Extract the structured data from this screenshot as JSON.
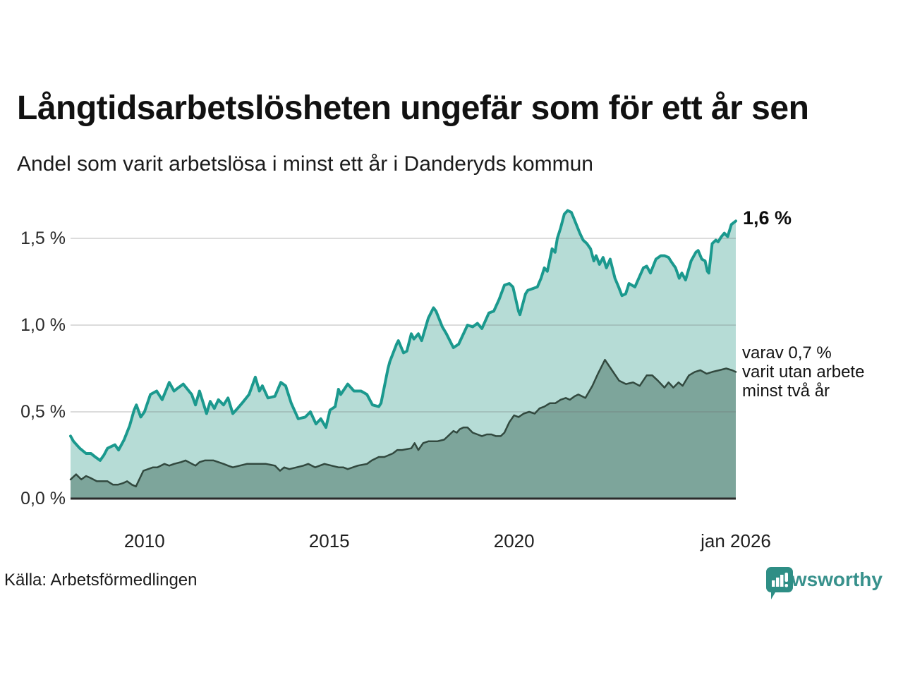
{
  "header": {
    "title": "Långtidsarbetslösheten ungefär som för ett år sen",
    "subtitle": "Andel som varit arbetslösa i minst ett år i Danderyds kommun"
  },
  "footer": {
    "source": "Källa: Arbetsförmedlingen",
    "brand": "Newsworthy"
  },
  "colors": {
    "accent_teal": "#1b998e",
    "light_fill": "#b6dcd6",
    "dark_line": "#32493f",
    "dark_fill": "#7da59b",
    "gridline": "#6e6e6e",
    "axis": "#2b2b2b",
    "brand_teal": "#38918c",
    "logo_bubble": "#2e8e85"
  },
  "chart_data": {
    "type": "area",
    "title": "Långtidsarbetslösheten ungefär som för ett år sen",
    "subtitle": "Andel som varit arbetslösa i minst ett år i Danderyds kommun",
    "xlabel": "",
    "ylabel": "",
    "xlim": [
      2008,
      2026
    ],
    "ylim": [
      0,
      1.75
    ],
    "grid": true,
    "legend_position": "none",
    "x_ticks": [
      {
        "year": 2010,
        "label": "2010"
      },
      {
        "year": 2015,
        "label": "2015"
      },
      {
        "year": 2020,
        "label": "2020"
      },
      {
        "year": 2026,
        "label": "jan 2026"
      }
    ],
    "y_ticks": [
      {
        "value": 0.0,
        "label": "0,0 %"
      },
      {
        "value": 0.5,
        "label": "0,5 %"
      },
      {
        "value": 1.0,
        "label": "1,0 %"
      },
      {
        "value": 1.5,
        "label": "1,5 %"
      }
    ],
    "annotations": {
      "latest": {
        "text": "1,6 %",
        "value": 1.6,
        "series": "minst ett år"
      },
      "secondary": {
        "lines": [
          "varav 0,7 %",
          "varit utan arbete",
          "minst två år"
        ],
        "value": 0.7,
        "series": "minst två år"
      }
    },
    "series": [
      {
        "name": "Andel arbetslösa minst ett år",
        "line_color": "#1b998e",
        "fill_color": "#b6dcd6",
        "line_width": 4,
        "points": [
          [
            2008.0,
            0.36
          ],
          [
            2008.08,
            0.33
          ],
          [
            2008.25,
            0.29
          ],
          [
            2008.42,
            0.26
          ],
          [
            2008.55,
            0.26
          ],
          [
            2008.67,
            0.24
          ],
          [
            2008.8,
            0.22
          ],
          [
            2008.9,
            0.25
          ],
          [
            2009.0,
            0.29
          ],
          [
            2009.1,
            0.3
          ],
          [
            2009.2,
            0.31
          ],
          [
            2009.3,
            0.28
          ],
          [
            2009.45,
            0.34
          ],
          [
            2009.6,
            0.42
          ],
          [
            2009.72,
            0.51
          ],
          [
            2009.78,
            0.54
          ],
          [
            2009.9,
            0.47
          ],
          [
            2010.0,
            0.5
          ],
          [
            2010.16,
            0.6
          ],
          [
            2010.33,
            0.62
          ],
          [
            2010.48,
            0.57
          ],
          [
            2010.67,
            0.67
          ],
          [
            2010.8,
            0.62
          ],
          [
            2010.92,
            0.64
          ],
          [
            2011.05,
            0.66
          ],
          [
            2011.28,
            0.6
          ],
          [
            2011.38,
            0.54
          ],
          [
            2011.49,
            0.62
          ],
          [
            2011.68,
            0.49
          ],
          [
            2011.78,
            0.56
          ],
          [
            2011.89,
            0.52
          ],
          [
            2012.0,
            0.57
          ],
          [
            2012.14,
            0.54
          ],
          [
            2012.26,
            0.58
          ],
          [
            2012.39,
            0.49
          ],
          [
            2012.52,
            0.52
          ],
          [
            2012.64,
            0.55
          ],
          [
            2012.83,
            0.6
          ],
          [
            2013.0,
            0.7
          ],
          [
            2013.11,
            0.62
          ],
          [
            2013.19,
            0.65
          ],
          [
            2013.34,
            0.58
          ],
          [
            2013.53,
            0.59
          ],
          [
            2013.69,
            0.67
          ],
          [
            2013.82,
            0.65
          ],
          [
            2013.97,
            0.55
          ],
          [
            2014.16,
            0.46
          ],
          [
            2014.35,
            0.47
          ],
          [
            2014.49,
            0.5
          ],
          [
            2014.64,
            0.43
          ],
          [
            2014.77,
            0.46
          ],
          [
            2014.91,
            0.41
          ],
          [
            2015.02,
            0.51
          ],
          [
            2015.16,
            0.53
          ],
          [
            2015.25,
            0.63
          ],
          [
            2015.31,
            0.6
          ],
          [
            2015.5,
            0.66
          ],
          [
            2015.67,
            0.62
          ],
          [
            2015.86,
            0.62
          ],
          [
            2016.02,
            0.6
          ],
          [
            2016.17,
            0.54
          ],
          [
            2016.34,
            0.53
          ],
          [
            2016.4,
            0.55
          ],
          [
            2016.59,
            0.75
          ],
          [
            2016.64,
            0.79
          ],
          [
            2016.82,
            0.89
          ],
          [
            2016.87,
            0.91
          ],
          [
            2017.01,
            0.84
          ],
          [
            2017.1,
            0.85
          ],
          [
            2017.22,
            0.95
          ],
          [
            2017.29,
            0.92
          ],
          [
            2017.41,
            0.95
          ],
          [
            2017.5,
            0.91
          ],
          [
            2017.68,
            1.04
          ],
          [
            2017.82,
            1.1
          ],
          [
            2017.89,
            1.08
          ],
          [
            2018.06,
            0.99
          ],
          [
            2018.17,
            0.95
          ],
          [
            2018.36,
            0.87
          ],
          [
            2018.5,
            0.89
          ],
          [
            2018.74,
            1.0
          ],
          [
            2018.88,
            0.99
          ],
          [
            2019.01,
            1.01
          ],
          [
            2019.13,
            0.98
          ],
          [
            2019.32,
            1.07
          ],
          [
            2019.45,
            1.08
          ],
          [
            2019.6,
            1.15
          ],
          [
            2019.74,
            1.23
          ],
          [
            2019.87,
            1.24
          ],
          [
            2019.97,
            1.22
          ],
          [
            2020.12,
            1.08
          ],
          [
            2020.16,
            1.06
          ],
          [
            2020.31,
            1.18
          ],
          [
            2020.37,
            1.2
          ],
          [
            2020.63,
            1.22
          ],
          [
            2020.73,
            1.27
          ],
          [
            2020.82,
            1.33
          ],
          [
            2020.9,
            1.31
          ],
          [
            2021.03,
            1.44
          ],
          [
            2021.11,
            1.42
          ],
          [
            2021.17,
            1.5
          ],
          [
            2021.26,
            1.56
          ],
          [
            2021.36,
            1.64
          ],
          [
            2021.45,
            1.66
          ],
          [
            2021.55,
            1.65
          ],
          [
            2021.61,
            1.62
          ],
          [
            2021.78,
            1.53
          ],
          [
            2021.87,
            1.49
          ],
          [
            2021.97,
            1.47
          ],
          [
            2022.07,
            1.44
          ],
          [
            2022.16,
            1.37
          ],
          [
            2022.22,
            1.4
          ],
          [
            2022.31,
            1.35
          ],
          [
            2022.41,
            1.39
          ],
          [
            2022.5,
            1.33
          ],
          [
            2022.6,
            1.38
          ],
          [
            2022.73,
            1.27
          ],
          [
            2022.83,
            1.22
          ],
          [
            2022.92,
            1.17
          ],
          [
            2023.02,
            1.18
          ],
          [
            2023.11,
            1.24
          ],
          [
            2023.27,
            1.22
          ],
          [
            2023.5,
            1.33
          ],
          [
            2023.59,
            1.34
          ],
          [
            2023.69,
            1.3
          ],
          [
            2023.84,
            1.38
          ],
          [
            2023.97,
            1.4
          ],
          [
            2024.07,
            1.4
          ],
          [
            2024.18,
            1.39
          ],
          [
            2024.27,
            1.36
          ],
          [
            2024.37,
            1.33
          ],
          [
            2024.47,
            1.27
          ],
          [
            2024.54,
            1.3
          ],
          [
            2024.64,
            1.26
          ],
          [
            2024.79,
            1.37
          ],
          [
            2024.92,
            1.42
          ],
          [
            2024.98,
            1.43
          ],
          [
            2025.08,
            1.38
          ],
          [
            2025.17,
            1.37
          ],
          [
            2025.23,
            1.31
          ],
          [
            2025.27,
            1.3
          ],
          [
            2025.36,
            1.47
          ],
          [
            2025.46,
            1.49
          ],
          [
            2025.52,
            1.48
          ],
          [
            2025.61,
            1.51
          ],
          [
            2025.69,
            1.53
          ],
          [
            2025.78,
            1.51
          ],
          [
            2025.88,
            1.58
          ],
          [
            2026.0,
            1.6
          ]
        ]
      },
      {
        "name": "Andel utan arbete minst två år",
        "line_color": "#32493f",
        "fill_color": "#7da59b",
        "line_width": 2.5,
        "points": [
          [
            2008.0,
            0.11
          ],
          [
            2008.15,
            0.14
          ],
          [
            2008.29,
            0.11
          ],
          [
            2008.42,
            0.13
          ],
          [
            2008.53,
            0.12
          ],
          [
            2008.71,
            0.1
          ],
          [
            2008.86,
            0.1
          ],
          [
            2009.0,
            0.1
          ],
          [
            2009.15,
            0.08
          ],
          [
            2009.28,
            0.08
          ],
          [
            2009.43,
            0.09
          ],
          [
            2009.53,
            0.1
          ],
          [
            2009.66,
            0.08
          ],
          [
            2009.77,
            0.07
          ],
          [
            2009.97,
            0.16
          ],
          [
            2010.1,
            0.17
          ],
          [
            2010.23,
            0.18
          ],
          [
            2010.35,
            0.18
          ],
          [
            2010.54,
            0.2
          ],
          [
            2010.67,
            0.19
          ],
          [
            2010.8,
            0.2
          ],
          [
            2010.99,
            0.21
          ],
          [
            2011.11,
            0.22
          ],
          [
            2011.38,
            0.19
          ],
          [
            2011.49,
            0.21
          ],
          [
            2011.63,
            0.22
          ],
          [
            2011.87,
            0.22
          ],
          [
            2012.14,
            0.2
          ],
          [
            2012.26,
            0.19
          ],
          [
            2012.39,
            0.18
          ],
          [
            2012.77,
            0.2
          ],
          [
            2013.29,
            0.2
          ],
          [
            2013.53,
            0.19
          ],
          [
            2013.67,
            0.16
          ],
          [
            2013.78,
            0.18
          ],
          [
            2013.92,
            0.17
          ],
          [
            2014.3,
            0.19
          ],
          [
            2014.43,
            0.2
          ],
          [
            2014.62,
            0.18
          ],
          [
            2014.87,
            0.2
          ],
          [
            2015.25,
            0.18
          ],
          [
            2015.38,
            0.18
          ],
          [
            2015.5,
            0.17
          ],
          [
            2015.77,
            0.19
          ],
          [
            2016.02,
            0.2
          ],
          [
            2016.15,
            0.22
          ],
          [
            2016.34,
            0.24
          ],
          [
            2016.49,
            0.24
          ],
          [
            2016.72,
            0.26
          ],
          [
            2016.84,
            0.28
          ],
          [
            2016.97,
            0.28
          ],
          [
            2017.22,
            0.29
          ],
          [
            2017.31,
            0.32
          ],
          [
            2017.41,
            0.28
          ],
          [
            2017.54,
            0.32
          ],
          [
            2017.68,
            0.33
          ],
          [
            2017.92,
            0.33
          ],
          [
            2018.11,
            0.34
          ],
          [
            2018.26,
            0.37
          ],
          [
            2018.36,
            0.39
          ],
          [
            2018.45,
            0.38
          ],
          [
            2018.53,
            0.4
          ],
          [
            2018.63,
            0.41
          ],
          [
            2018.74,
            0.41
          ],
          [
            2018.88,
            0.38
          ],
          [
            2019.01,
            0.37
          ],
          [
            2019.13,
            0.36
          ],
          [
            2019.26,
            0.37
          ],
          [
            2019.39,
            0.37
          ],
          [
            2019.51,
            0.36
          ],
          [
            2019.64,
            0.36
          ],
          [
            2019.74,
            0.38
          ],
          [
            2019.87,
            0.44
          ],
          [
            2020.0,
            0.48
          ],
          [
            2020.12,
            0.47
          ],
          [
            2020.26,
            0.49
          ],
          [
            2020.41,
            0.5
          ],
          [
            2020.56,
            0.49
          ],
          [
            2020.69,
            0.52
          ],
          [
            2020.82,
            0.53
          ],
          [
            2020.97,
            0.55
          ],
          [
            2021.12,
            0.55
          ],
          [
            2021.26,
            0.57
          ],
          [
            2021.4,
            0.58
          ],
          [
            2021.51,
            0.57
          ],
          [
            2021.64,
            0.59
          ],
          [
            2021.74,
            0.6
          ],
          [
            2021.93,
            0.58
          ],
          [
            2022.12,
            0.65
          ],
          [
            2022.27,
            0.72
          ],
          [
            2022.46,
            0.8
          ],
          [
            2022.65,
            0.74
          ],
          [
            2022.84,
            0.68
          ],
          [
            2023.03,
            0.66
          ],
          [
            2023.22,
            0.67
          ],
          [
            2023.4,
            0.65
          ],
          [
            2023.59,
            0.71
          ],
          [
            2023.74,
            0.71
          ],
          [
            2023.89,
            0.68
          ],
          [
            2024.07,
            0.64
          ],
          [
            2024.18,
            0.67
          ],
          [
            2024.31,
            0.64
          ],
          [
            2024.45,
            0.67
          ],
          [
            2024.56,
            0.65
          ],
          [
            2024.73,
            0.71
          ],
          [
            2024.89,
            0.73
          ],
          [
            2025.04,
            0.74
          ],
          [
            2025.21,
            0.72
          ],
          [
            2025.36,
            0.73
          ],
          [
            2025.55,
            0.74
          ],
          [
            2025.74,
            0.75
          ],
          [
            2025.9,
            0.74
          ],
          [
            2026.0,
            0.73
          ]
        ]
      }
    ]
  }
}
